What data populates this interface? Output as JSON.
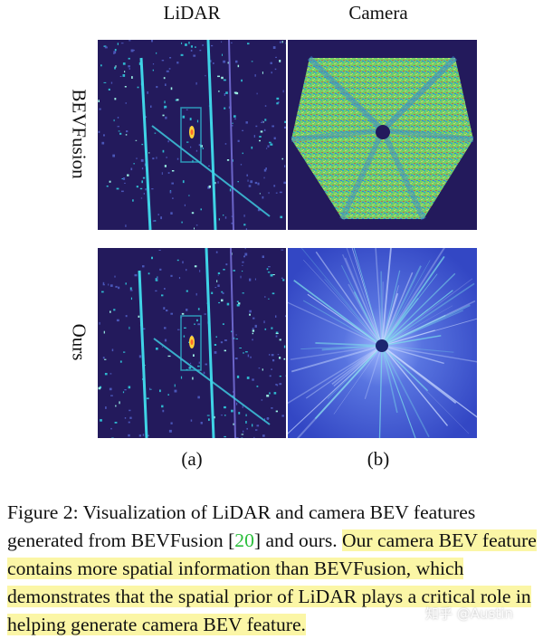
{
  "columns": {
    "lidar": "LiDAR",
    "camera": "Camera"
  },
  "rows": {
    "top": "BEVFusion",
    "bottom": "Ours"
  },
  "subfigure_labels": {
    "a": "(a)",
    "b": "(b)"
  },
  "caption": {
    "prefix": "Figure 2:  Visualization of LiDAR and camera BEV features generated from BEVFusion [",
    "citation": "20",
    "middle": "] and ours. ",
    "highlighted": "Our camera BEV feature contains more spatial information than BEVFusion, which demonstrates that the spatial prior of LiDAR plays a critical role in helping generate camera BEV feature."
  },
  "watermark": "知乎 @Austin",
  "colors": {
    "panel_bg": "#231a5c",
    "feature_cyan": "#3fd3e6",
    "camera_ours_bg": "#3850d0",
    "highlight": "#fbf6a6",
    "citation": "#2bbf3c"
  }
}
